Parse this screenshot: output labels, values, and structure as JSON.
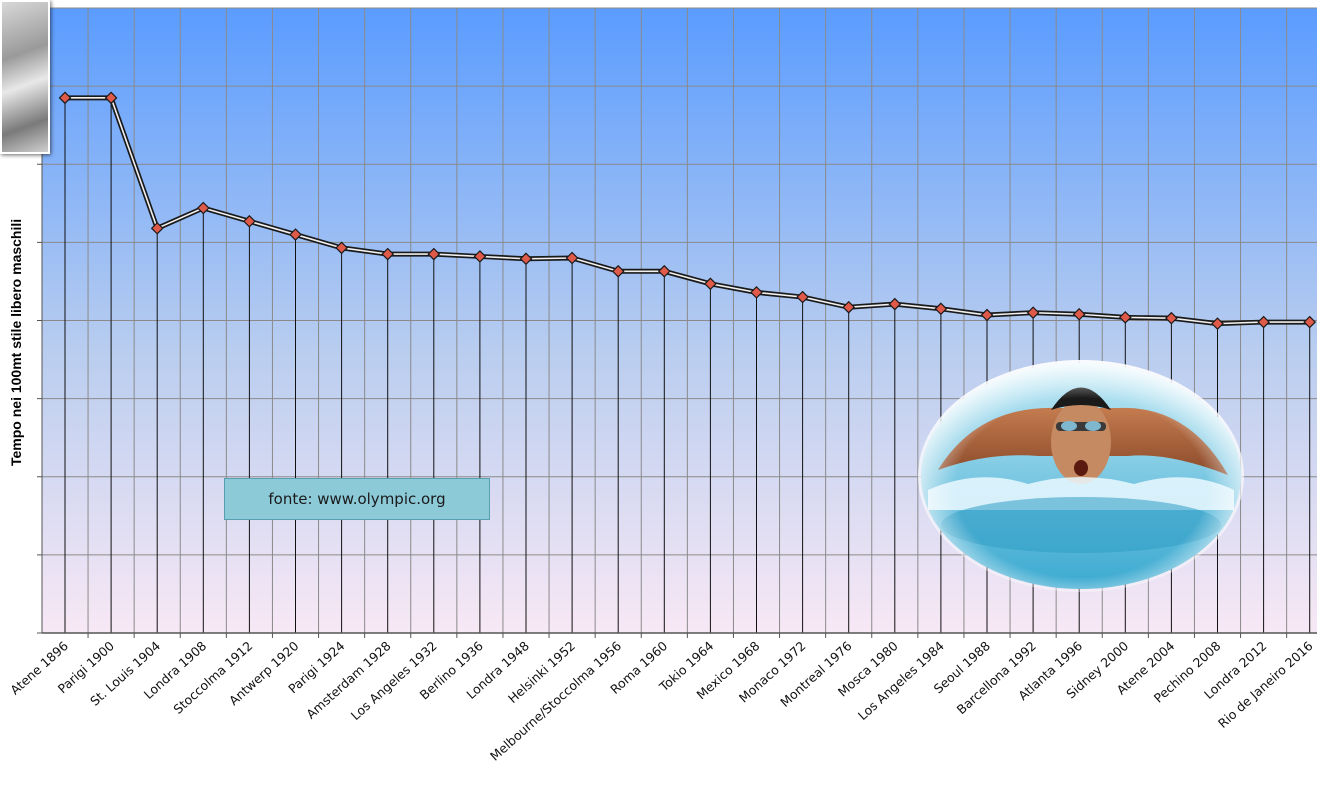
{
  "source_note": "fonte: www.olympic.org",
  "chart_data": {
    "type": "line",
    "title": "",
    "xlabel": "",
    "ylabel": "Tempo nei  100mt stile libero maschili",
    "y_axis_tick_labels_shown": false,
    "ylim": [
      0,
      8
    ],
    "grid": true,
    "background": [
      "#5a9cff",
      "#f8e8f5"
    ],
    "line_color": "#1a1a1a",
    "marker_color": "#e05a4a",
    "categories": [
      "Atene 1896",
      "Parigi 1900",
      "St. Louis 1904",
      "Londra 1908",
      "Stoccolma 1912",
      "Antwerp 1920",
      "Parigi 1924",
      "Amsterdam 1928",
      "Los Angeles 1932",
      "Berlino 1936",
      "Londra 1948",
      "Helsinki 1952",
      "Melbourne/Stoccolma 1956",
      "Roma 1960",
      "Tokio 1964",
      "Mexico 1968",
      "Monaco 1972",
      "Montreal 1976",
      "Mosca 1980",
      "Los Angeles 1984",
      "Seoul 1988",
      "Barcellona 1992",
      "Atlanta 1996",
      "Sidney 2000",
      "Atene 2004",
      "Pechino 2008",
      "Londra 2012",
      "Rio de Janeiro 2016"
    ],
    "values": [
      6.85,
      6.85,
      5.18,
      5.44,
      5.27,
      5.1,
      4.93,
      4.85,
      4.85,
      4.82,
      4.79,
      4.8,
      4.63,
      4.63,
      4.47,
      4.36,
      4.3,
      4.17,
      4.21,
      4.15,
      4.07,
      4.1,
      4.08,
      4.04,
      4.03,
      3.96,
      3.98,
      3.98
    ]
  }
}
